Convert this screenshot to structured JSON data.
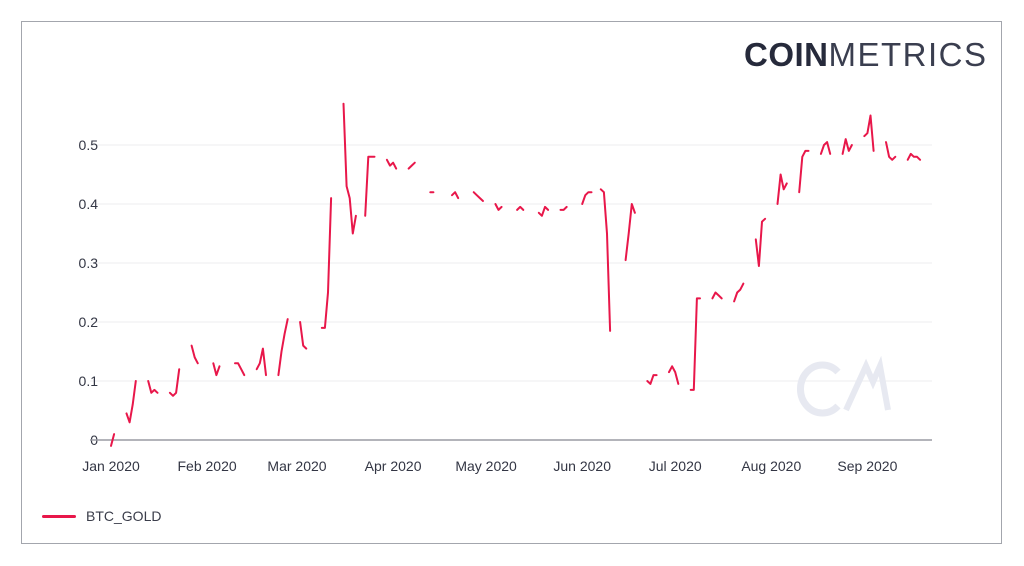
{
  "brand": {
    "bold": "COIN",
    "light": "METRICS",
    "watermark": "CM"
  },
  "colors": {
    "series": "#e8174a",
    "grid": "#ececef",
    "axis": "#9a9ca4",
    "text": "#333644",
    "watermark": "#e7e9f1"
  },
  "legend": {
    "items": [
      {
        "label": "BTC_GOLD",
        "color": "#e8174a"
      }
    ]
  },
  "chart_data": {
    "type": "line",
    "title": "",
    "xlabel": "",
    "ylabel": "",
    "ylim": [
      0,
      0.57
    ],
    "yticks": [
      "0",
      "0.1",
      "0.2",
      "0.3",
      "0.4",
      "0.5"
    ],
    "xticks": [
      "Jan 2020",
      "Feb 2020",
      "Mar 2020",
      "Apr 2020",
      "May 2020",
      "Jun 2020",
      "Jul 2020",
      "Aug 2020",
      "Sep 2020"
    ],
    "grid": true,
    "legend_position": "bottom-left",
    "series": [
      {
        "name": "BTC_GOLD",
        "note": "Daily values with gaps (non-trading days). Each segment is [day_index_from_2020-01-01, value].",
        "segments": [
          [
            [
              0,
              -0.01
            ],
            [
              1,
              0.01
            ]
          ],
          [
            [
              5,
              0.045
            ],
            [
              6,
              0.03
            ],
            [
              7,
              0.06
            ],
            [
              8,
              0.1
            ]
          ],
          [
            [
              12,
              0.1
            ],
            [
              13,
              0.08
            ],
            [
              14,
              0.085
            ],
            [
              15,
              0.08
            ]
          ],
          [
            [
              19,
              0.08
            ],
            [
              20,
              0.075
            ],
            [
              21,
              0.08
            ],
            [
              22,
              0.12
            ]
          ],
          [
            [
              26,
              0.16
            ],
            [
              27,
              0.14
            ],
            [
              28,
              0.13
            ]
          ],
          [
            [
              33,
              0.13
            ],
            [
              34,
              0.11
            ],
            [
              35,
              0.125
            ]
          ],
          [
            [
              40,
              0.13
            ],
            [
              41,
              0.13
            ],
            [
              42,
              0.12
            ],
            [
              43,
              0.11
            ]
          ],
          [
            [
              47,
              0.12
            ],
            [
              48,
              0.13
            ],
            [
              49,
              0.155
            ],
            [
              50,
              0.11
            ]
          ],
          [
            [
              54,
              0.11
            ],
            [
              55,
              0.15
            ],
            [
              56,
              0.18
            ],
            [
              57,
              0.205
            ]
          ],
          [
            [
              61,
              0.2
            ],
            [
              62,
              0.16
            ],
            [
              63,
              0.155
            ]
          ],
          [
            [
              68,
              0.19
            ],
            [
              69,
              0.19
            ],
            [
              70,
              0.25
            ],
            [
              71,
              0.41
            ]
          ],
          [
            [
              75,
              0.57
            ],
            [
              76,
              0.43
            ],
            [
              77,
              0.41
            ],
            [
              78,
              0.35
            ],
            [
              79,
              0.38
            ]
          ],
          [
            [
              82,
              0.38
            ],
            [
              83,
              0.48
            ],
            [
              84,
              0.48
            ],
            [
              85,
              0.48
            ]
          ],
          [
            [
              89,
              0.475
            ],
            [
              90,
              0.465
            ],
            [
              91,
              0.47
            ],
            [
              92,
              0.46
            ]
          ],
          [
            [
              96,
              0.46
            ],
            [
              97,
              0.465
            ],
            [
              98,
              0.47
            ]
          ],
          [
            [
              103,
              0.42
            ],
            [
              104,
              0.42
            ]
          ],
          [
            [
              110,
              0.415
            ],
            [
              111,
              0.42
            ],
            [
              112,
              0.41
            ]
          ],
          [
            [
              117,
              0.42
            ],
            [
              118,
              0.415
            ],
            [
              119,
              0.41
            ],
            [
              120,
              0.405
            ]
          ],
          [
            [
              124,
              0.4
            ],
            [
              125,
              0.39
            ],
            [
              126,
              0.395
            ]
          ],
          [
            [
              131,
              0.39
            ],
            [
              132,
              0.395
            ],
            [
              133,
              0.39
            ]
          ],
          [
            [
              138,
              0.385
            ],
            [
              139,
              0.38
            ],
            [
              140,
              0.395
            ],
            [
              141,
              0.39
            ]
          ],
          [
            [
              145,
              0.39
            ],
            [
              146,
              0.39
            ],
            [
              147,
              0.395
            ]
          ],
          [
            [
              152,
              0.4
            ],
            [
              153,
              0.415
            ],
            [
              154,
              0.42
            ],
            [
              155,
              0.42
            ]
          ],
          [
            [
              158,
              0.425
            ],
            [
              159,
              0.42
            ],
            [
              160,
              0.35
            ],
            [
              161,
              0.185
            ]
          ],
          [
            [
              166,
              0.305
            ],
            [
              167,
              0.35
            ],
            [
              168,
              0.4
            ],
            [
              169,
              0.385
            ]
          ],
          [
            [
              173,
              0.1
            ],
            [
              174,
              0.095
            ],
            [
              175,
              0.11
            ],
            [
              176,
              0.11
            ]
          ],
          [
            [
              180,
              0.115
            ],
            [
              181,
              0.125
            ],
            [
              182,
              0.115
            ],
            [
              183,
              0.095
            ]
          ],
          [
            [
              187,
              0.085
            ],
            [
              188,
              0.085
            ],
            [
              189,
              0.24
            ],
            [
              190,
              0.24
            ]
          ],
          [
            [
              194,
              0.24
            ],
            [
              195,
              0.25
            ],
            [
              196,
              0.245
            ],
            [
              197,
              0.24
            ]
          ],
          [
            [
              201,
              0.235
            ],
            [
              202,
              0.25
            ],
            [
              203,
              0.255
            ],
            [
              204,
              0.265
            ]
          ],
          [
            [
              208,
              0.34
            ],
            [
              209,
              0.295
            ],
            [
              210,
              0.37
            ],
            [
              211,
              0.375
            ]
          ],
          [
            [
              215,
              0.4
            ],
            [
              216,
              0.45
            ],
            [
              217,
              0.425
            ],
            [
              218,
              0.435
            ]
          ],
          [
            [
              222,
              0.42
            ],
            [
              223,
              0.48
            ],
            [
              224,
              0.49
            ],
            [
              225,
              0.49
            ]
          ],
          [
            [
              229,
              0.485
            ],
            [
              230,
              0.5
            ],
            [
              231,
              0.505
            ],
            [
              232,
              0.485
            ]
          ],
          [
            [
              236,
              0.485
            ],
            [
              237,
              0.51
            ],
            [
              238,
              0.49
            ],
            [
              239,
              0.5
            ]
          ],
          [
            [
              243,
              0.515
            ],
            [
              244,
              0.52
            ],
            [
              245,
              0.55
            ],
            [
              246,
              0.49
            ]
          ],
          [
            [
              250,
              0.505
            ],
            [
              251,
              0.48
            ],
            [
              252,
              0.475
            ],
            [
              253,
              0.48
            ]
          ],
          [
            [
              257,
              0.475
            ],
            [
              258,
              0.485
            ],
            [
              259,
              0.48
            ],
            [
              260,
              0.48
            ],
            [
              261,
              0.475
            ]
          ]
        ]
      }
    ]
  }
}
